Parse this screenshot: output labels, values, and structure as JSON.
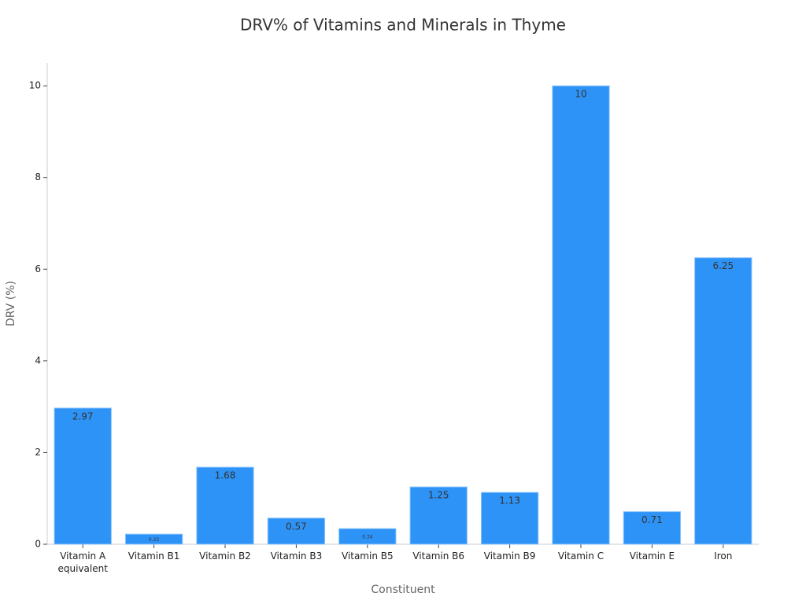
{
  "chart_data": {
    "type": "bar",
    "title": "DRV% of Vitamins and Minerals in Thyme",
    "x_label": "Constituent",
    "y_label": "DRV (%)",
    "categories": [
      "Vitamin A\nequivalent",
      "Vitamin B1",
      "Vitamin B2",
      "Vitamin B3",
      "Vitamin B5",
      "Vitamin B6",
      "Vitamin B9",
      "Vitamin C",
      "Vitamin E",
      "Iron"
    ],
    "values": [
      2.97,
      0.22,
      1.68,
      0.57,
      0.34,
      1.25,
      1.13,
      10,
      0.71,
      6.25
    ],
    "color": "#2e93f7",
    "ylim": [
      0,
      10.5
    ],
    "yticks": [
      0,
      2,
      4,
      6,
      8,
      10
    ],
    "grid": false
  }
}
